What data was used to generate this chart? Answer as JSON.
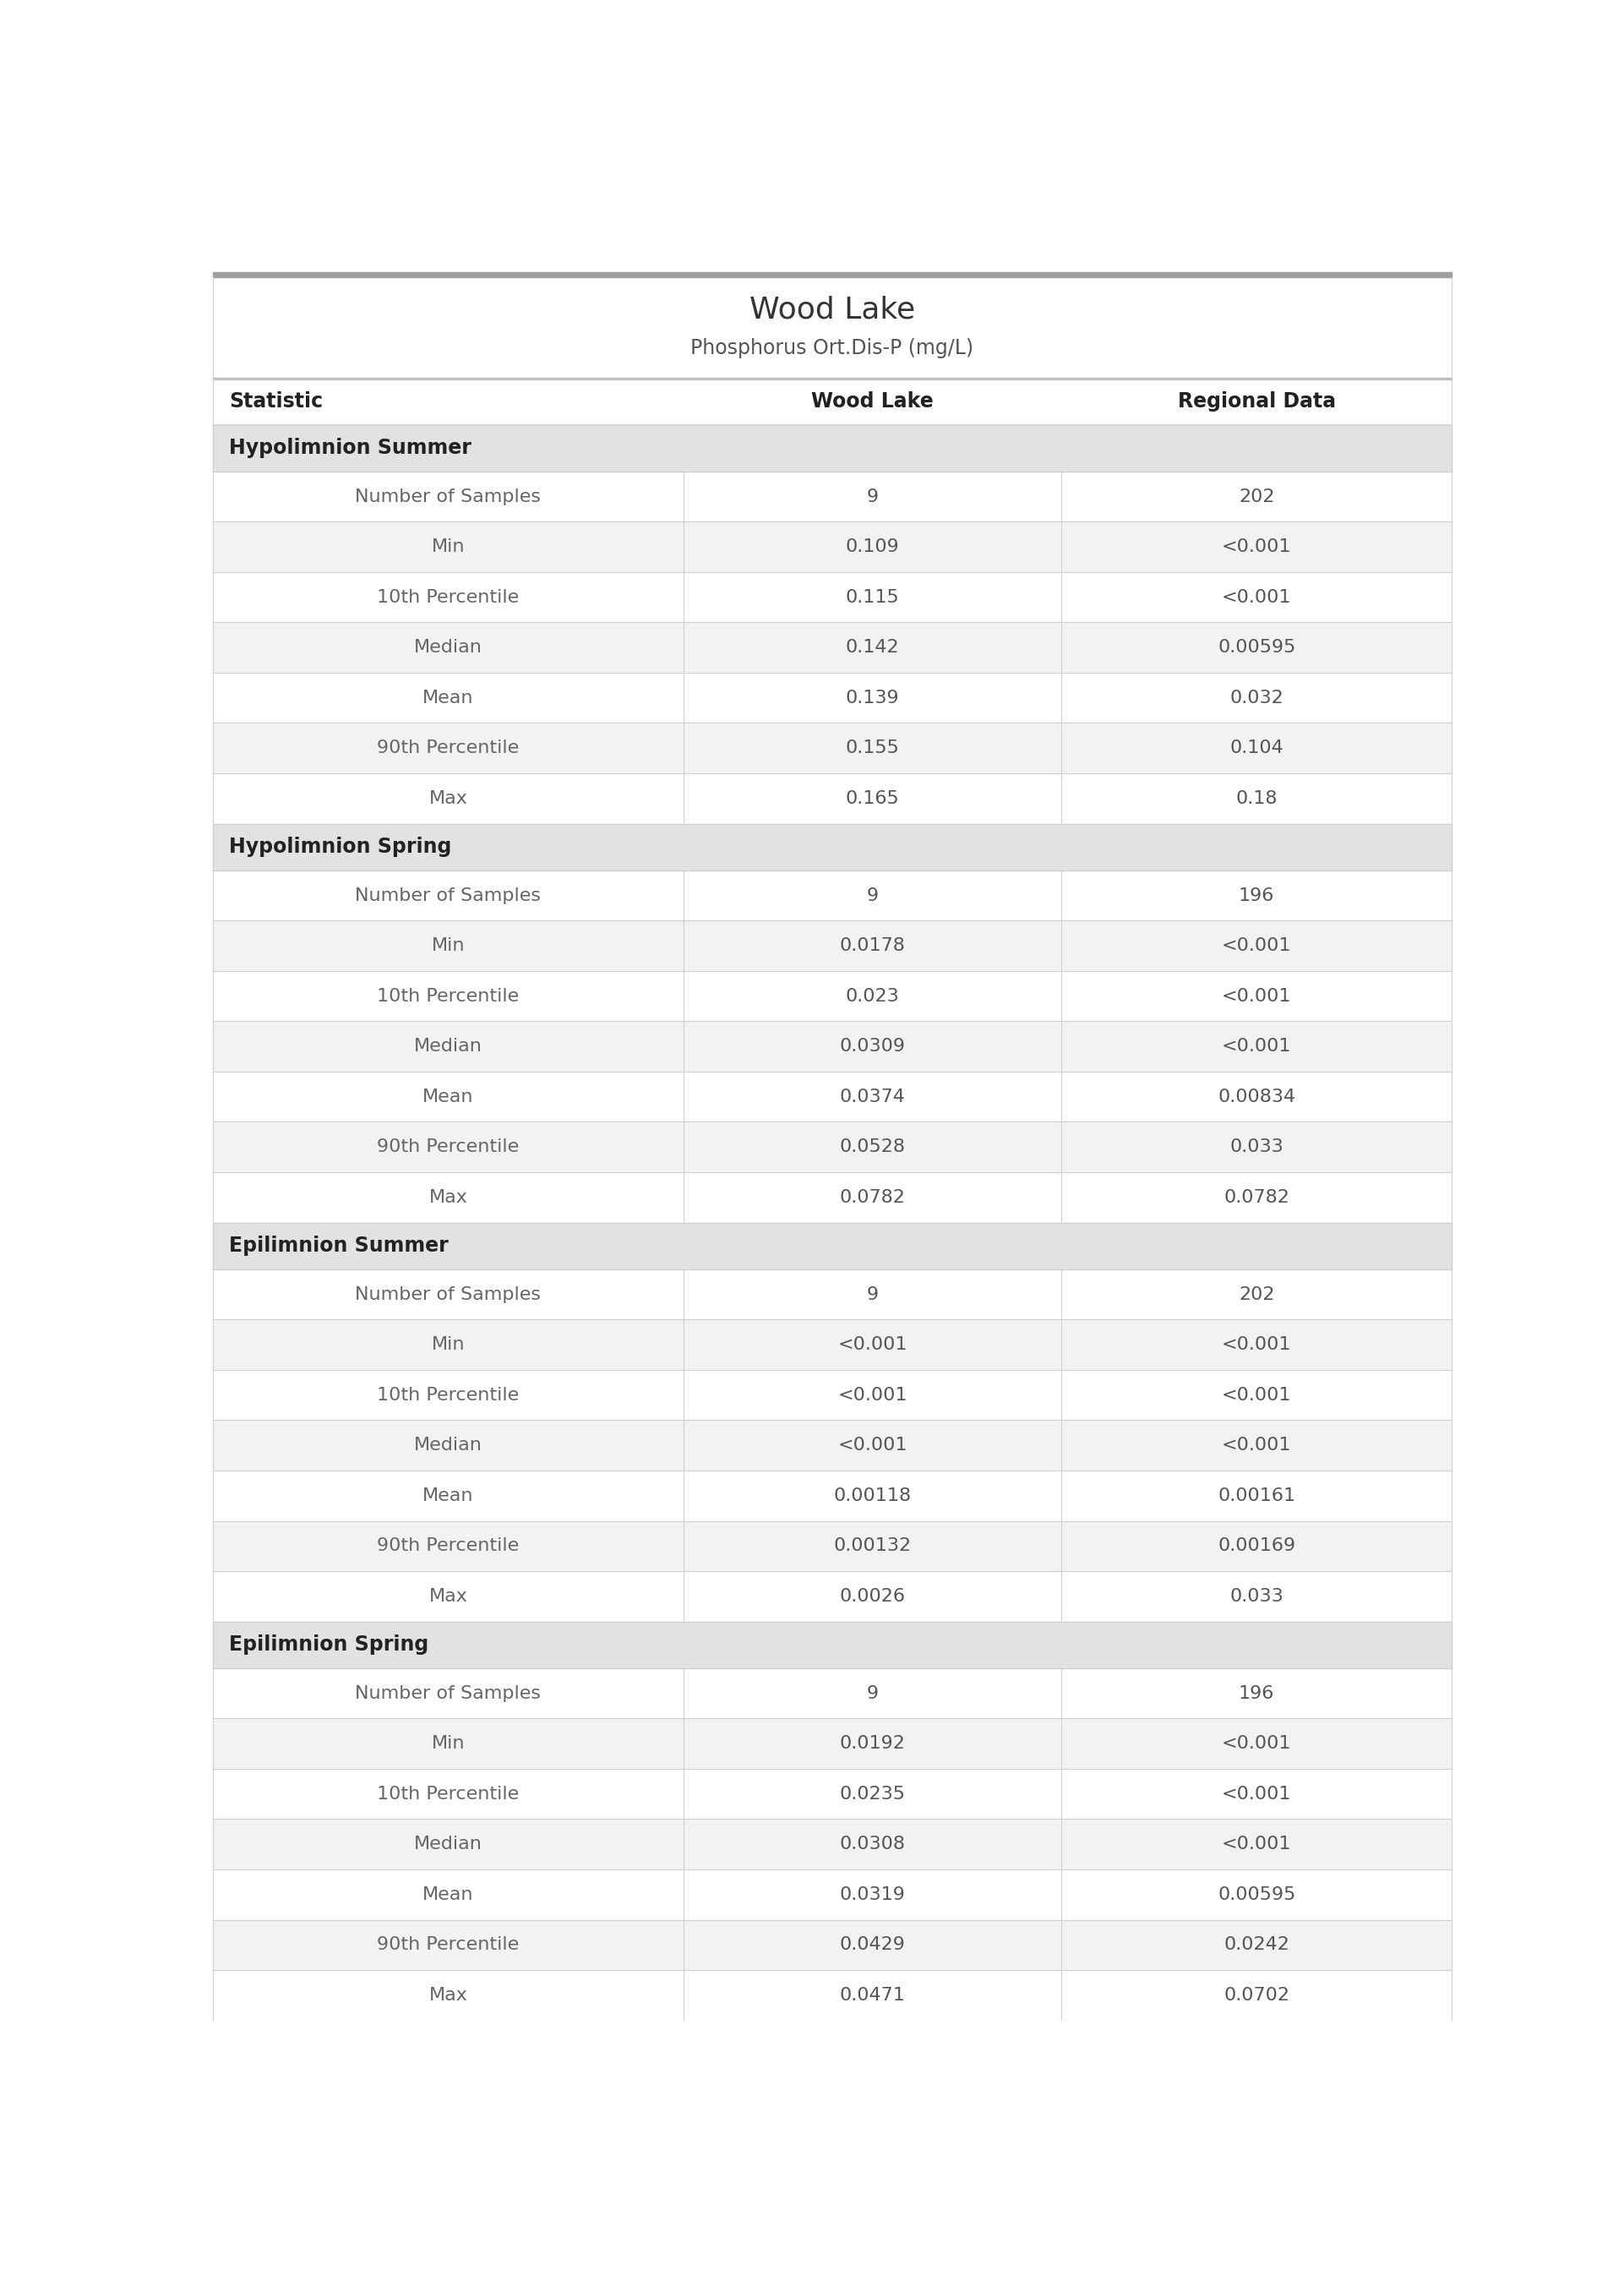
{
  "title": "Wood Lake",
  "subtitle": "Phosphorus Ort.Dis-P (mg/L)",
  "col_headers": [
    "Statistic",
    "Wood Lake",
    "Regional Data"
  ],
  "sections": [
    {
      "header": "Hypolimnion Summer",
      "rows": [
        [
          "Number of Samples",
          "9",
          "202"
        ],
        [
          "Min",
          "0.109",
          "<0.001"
        ],
        [
          "10th Percentile",
          "0.115",
          "<0.001"
        ],
        [
          "Median",
          "0.142",
          "0.00595"
        ],
        [
          "Mean",
          "0.139",
          "0.032"
        ],
        [
          "90th Percentile",
          "0.155",
          "0.104"
        ],
        [
          "Max",
          "0.165",
          "0.18"
        ]
      ]
    },
    {
      "header": "Hypolimnion Spring",
      "rows": [
        [
          "Number of Samples",
          "9",
          "196"
        ],
        [
          "Min",
          "0.0178",
          "<0.001"
        ],
        [
          "10th Percentile",
          "0.023",
          "<0.001"
        ],
        [
          "Median",
          "0.0309",
          "<0.001"
        ],
        [
          "Mean",
          "0.0374",
          "0.00834"
        ],
        [
          "90th Percentile",
          "0.0528",
          "0.033"
        ],
        [
          "Max",
          "0.0782",
          "0.0782"
        ]
      ]
    },
    {
      "header": "Epilimnion Summer",
      "rows": [
        [
          "Number of Samples",
          "9",
          "202"
        ],
        [
          "Min",
          "<0.001",
          "<0.001"
        ],
        [
          "10th Percentile",
          "<0.001",
          "<0.001"
        ],
        [
          "Median",
          "<0.001",
          "<0.001"
        ],
        [
          "Mean",
          "0.00118",
          "0.00161"
        ],
        [
          "90th Percentile",
          "0.00132",
          "0.00169"
        ],
        [
          "Max",
          "0.0026",
          "0.033"
        ]
      ]
    },
    {
      "header": "Epilimnion Spring",
      "rows": [
        [
          "Number of Samples",
          "9",
          "196"
        ],
        [
          "Min",
          "0.0192",
          "<0.001"
        ],
        [
          "10th Percentile",
          "0.0235",
          "<0.001"
        ],
        [
          "Median",
          "0.0308",
          "<0.001"
        ],
        [
          "Mean",
          "0.0319",
          "0.00595"
        ],
        [
          "90th Percentile",
          "0.0429",
          "0.0242"
        ],
        [
          "Max",
          "0.0471",
          "0.0702"
        ]
      ]
    }
  ],
  "bg_color": "#ffffff",
  "section_bg": "#e2e2e2",
  "row_bg_odd": "#ffffff",
  "row_bg_even": "#f2f2f2",
  "divider_color": "#d0d0d0",
  "top_bar_color": "#a0a0a0",
  "col_header_bg": "#ffffff",
  "text_color_stat": "#666666",
  "text_color_val": "#555555",
  "text_color_section": "#222222",
  "title_color": "#333333",
  "subtitle_color": "#555555",
  "col_header_color": "#222222",
  "title_fontsize": 26,
  "subtitle_fontsize": 17,
  "col_header_fontsize": 17,
  "section_fontsize": 17,
  "data_fontsize": 16,
  "col_split1": 0.38,
  "col_split2": 0.685
}
